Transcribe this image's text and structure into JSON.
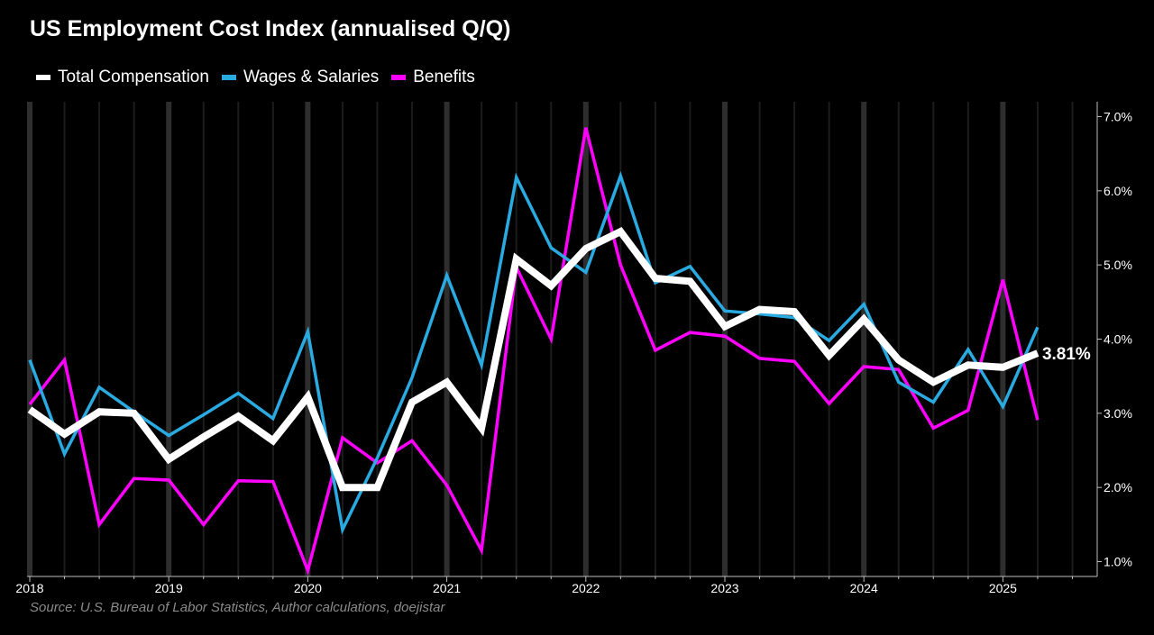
{
  "chart_data": {
    "type": "line",
    "title": "US Employment Cost Index (annualised Q/Q)",
    "source": "Source: U.S. Bureau of Labor Statistics, Author calculations, doejistar",
    "x": [
      "2018-Q1",
      "2018-Q2",
      "2018-Q3",
      "2018-Q4",
      "2019-Q1",
      "2019-Q2",
      "2019-Q3",
      "2019-Q4",
      "2020-Q1",
      "2020-Q2",
      "2020-Q3",
      "2020-Q4",
      "2021-Q1",
      "2021-Q2",
      "2021-Q3",
      "2021-Q4",
      "2022-Q1",
      "2022-Q2",
      "2022-Q3",
      "2022-Q4",
      "2023-Q1",
      "2023-Q2",
      "2023-Q3",
      "2023-Q4",
      "2024-Q1",
      "2024-Q2",
      "2024-Q3",
      "2024-Q4",
      "2025-Q1",
      "2025-Q2"
    ],
    "x_tick_labels": [
      "2018",
      "2019",
      "2020",
      "2021",
      "2022",
      "2023",
      "2024",
      "2025"
    ],
    "y_tick_labels": [
      "1.0%",
      "2.0%",
      "3.0%",
      "4.0%",
      "5.0%",
      "6.0%",
      "7.0%"
    ],
    "ylim": [
      0.8,
      7.2
    ],
    "grid": true,
    "legend_position": "top-left",
    "series": [
      {
        "name": "Total Compensation",
        "color": "#ffffff",
        "values": [
          3.05,
          2.72,
          3.02,
          3.0,
          2.38,
          2.68,
          2.96,
          2.63,
          3.22,
          2.0,
          2.0,
          3.15,
          3.42,
          2.8,
          5.08,
          4.72,
          5.22,
          5.45,
          4.82,
          4.78,
          4.17,
          4.4,
          4.37,
          3.78,
          4.27,
          3.72,
          3.42,
          3.65,
          3.62,
          3.81
        ]
      },
      {
        "name": "Wages & Salaries",
        "color": "#29abe2",
        "values": [
          3.72,
          2.45,
          3.35,
          3.02,
          2.7,
          2.98,
          3.27,
          2.93,
          4.1,
          1.43,
          2.4,
          3.48,
          4.86,
          3.65,
          6.18,
          5.23,
          4.9,
          6.2,
          4.76,
          4.98,
          4.38,
          4.34,
          4.29,
          3.98,
          4.47,
          3.42,
          3.15,
          3.86,
          3.09,
          4.16
        ]
      },
      {
        "name": "Benefits",
        "color": "#ff00ff",
        "values": [
          3.12,
          3.72,
          1.5,
          2.12,
          2.1,
          1.5,
          2.09,
          2.08,
          0.88,
          2.67,
          2.33,
          2.63,
          2.03,
          1.15,
          4.97,
          4.0,
          6.85,
          5.0,
          3.85,
          4.09,
          4.04,
          3.74,
          3.7,
          3.13,
          3.63,
          3.59,
          2.8,
          3.04,
          4.8,
          2.91
        ]
      }
    ],
    "end_label": "3.81%"
  }
}
